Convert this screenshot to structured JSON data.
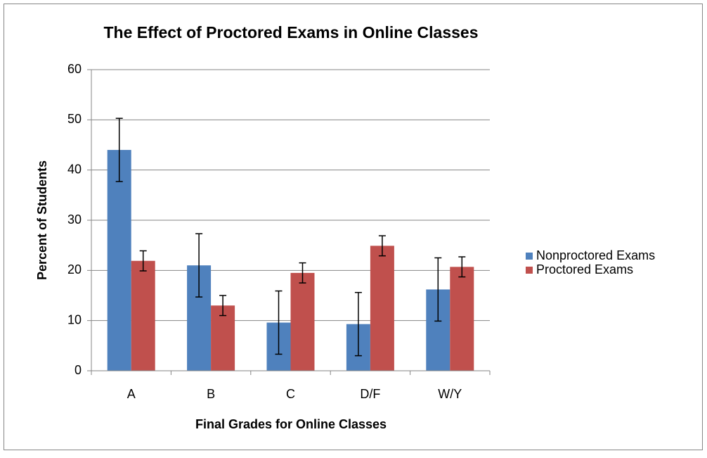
{
  "chart_data": {
    "type": "bar",
    "title": "The Effect of Proctored Exams in Online Classes",
    "x_label": "Final Grades for Online Classes",
    "y_label": "Percent of Students",
    "categories": [
      "A",
      "B",
      "C",
      "D/F",
      "W/Y"
    ],
    "series": [
      {
        "name": "Nonproctored Exams",
        "color": "#4f81bd",
        "values": [
          44,
          21,
          9.6,
          9.3,
          16.2
        ],
        "errors": [
          6.3,
          6.3,
          6.3,
          6.3,
          6.3
        ]
      },
      {
        "name": "Proctored Exams",
        "color": "#c0504d",
        "values": [
          21.9,
          13,
          19.5,
          24.9,
          20.7
        ],
        "errors": [
          2,
          2,
          2,
          2,
          2
        ]
      }
    ],
    "ylim": [
      0,
      60
    ],
    "yticks": [
      0,
      10,
      20,
      30,
      40,
      50,
      60
    ],
    "grid": true,
    "legend": "right"
  }
}
